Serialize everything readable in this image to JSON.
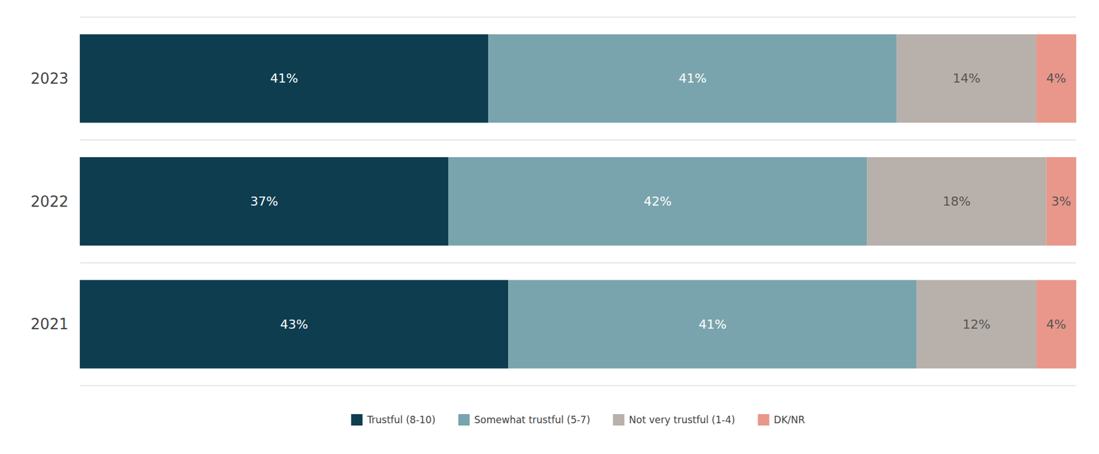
{
  "chart_data": {
    "type": "bar",
    "orientation": "horizontal",
    "stacked": true,
    "data_labels": true,
    "tick_labels": "y",
    "legend": "bottom",
    "categories": [
      "2023",
      "2022",
      "2021"
    ],
    "xlim": [
      0,
      100
    ],
    "series": [
      {
        "name": "Trustful (8-10)",
        "color": "#0d3d4f",
        "values": [
          41,
          37,
          43
        ],
        "value_labels": [
          "41%",
          "37%",
          "43%"
        ]
      },
      {
        "name": "Somewhat trustful (5-7)",
        "color": "#7aa4ad",
        "values": [
          41,
          42,
          41
        ],
        "value_labels": [
          "41%",
          "42%",
          "41%"
        ]
      },
      {
        "name": "Not very trustful (1-4)",
        "color": "#b8b0aa",
        "values": [
          14,
          18,
          12
        ],
        "value_labels": [
          "14%",
          "18%",
          "12%"
        ]
      },
      {
        "name": "DK/NR",
        "color": "#e8978a",
        "values": [
          4,
          3,
          4
        ],
        "value_labels": [
          "4%",
          "3%",
          "4%"
        ]
      }
    ]
  }
}
